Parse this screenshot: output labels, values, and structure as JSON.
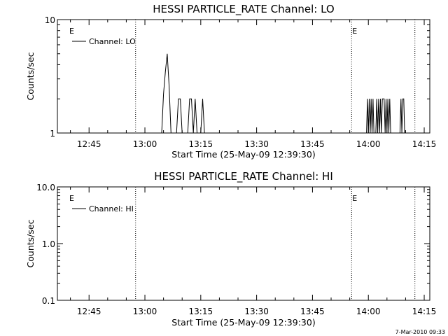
{
  "chart_data": [
    {
      "type": "line",
      "title": "HESSI PARTICLE_RATE Channel: LO",
      "xlabel": "Start Time (25-May-09 12:39:30)",
      "ylabel": "Counts/sec",
      "yscale": "log",
      "ylim": [
        1,
        10
      ],
      "ytick_labels": [
        "1",
        "10"
      ],
      "xlim_minutes_after_start": [
        -3,
        97
      ],
      "xtick_labels": [
        "12:45",
        "13:00",
        "13:15",
        "13:30",
        "13:45",
        "14:00",
        "14:15"
      ],
      "legend": {
        "placement": "top-left",
        "entries": [
          "Channel: LO"
        ]
      },
      "event_lines_at": [
        "12:57:30",
        "13:55:30",
        "14:12:30"
      ],
      "event_markers": [
        {
          "text": "E",
          "at": "12:39:30"
        },
        {
          "text": "E",
          "at": "13:55:30"
        }
      ],
      "grid": false,
      "series": [
        {
          "name": "Channel: LO",
          "x": [
            "13:04:30",
            "13:05:00",
            "13:05:30",
            "13:06:00",
            "13:06:30",
            "13:07:00",
            "13:08:30",
            "13:09:00",
            "13:09:30",
            "13:10:00",
            "13:11:30",
            "13:12:00",
            "13:12:30",
            "13:13:00",
            "13:13:30",
            "13:14:00",
            "13:15:00",
            "13:15:30",
            "13:16:00",
            "13:59:30",
            "13:59:45",
            "14:00:00",
            "14:00:15",
            "14:00:30",
            "14:00:45",
            "14:01:00",
            "14:01:15",
            "14:01:30",
            "14:02:00",
            "14:02:15",
            "14:02:30",
            "14:02:45",
            "14:03:00",
            "14:03:15",
            "14:03:30",
            "14:03:45",
            "14:04:15",
            "14:04:30",
            "14:04:45",
            "14:05:00",
            "14:05:15",
            "14:05:30",
            "14:05:45",
            "14:06:00",
            "14:06:15",
            "14:08:30",
            "14:08:45",
            "14:09:00",
            "14:09:15",
            "14:09:30",
            "14:09:45",
            "14:10:00"
          ],
          "y": [
            1,
            2.2,
            3.5,
            5,
            2.6,
            1,
            1,
            2,
            2,
            1,
            1,
            2,
            2,
            1,
            2,
            1,
            1,
            2,
            1,
            1,
            2,
            1,
            2,
            1,
            2,
            1,
            2,
            1,
            1,
            2,
            1,
            2,
            1,
            2,
            1,
            2,
            2,
            1,
            2,
            1,
            2,
            1,
            2,
            1,
            1,
            1,
            2,
            1,
            2,
            2,
            1,
            1
          ]
        }
      ]
    },
    {
      "type": "line",
      "title": "HESSI PARTICLE_RATE Channel: HI",
      "xlabel": "Start Time (25-May-09 12:39:30)",
      "ylabel": "Counts/sec",
      "yscale": "log",
      "ylim": [
        0.1,
        10
      ],
      "ytick_labels": [
        "0.1",
        "1.0",
        "10.0"
      ],
      "xlim_minutes_after_start": [
        -3,
        97
      ],
      "xtick_labels": [
        "12:45",
        "13:00",
        "13:15",
        "13:30",
        "13:45",
        "14:00",
        "14:15"
      ],
      "legend": {
        "placement": "top-left",
        "entries": [
          "Channel: HI"
        ]
      },
      "event_lines_at": [
        "12:57:30",
        "13:55:30",
        "14:12:30"
      ],
      "event_markers": [
        {
          "text": "E",
          "at": "12:39:30"
        },
        {
          "text": "E",
          "at": "13:55:30"
        }
      ],
      "grid": false,
      "series": [
        {
          "name": "Channel: HI",
          "x": [],
          "y": []
        }
      ]
    }
  ],
  "footer": {
    "timestamp": "7-Mar-2010 09:33"
  },
  "colors": {
    "background": "#ffffff",
    "foreground": "#000000"
  }
}
